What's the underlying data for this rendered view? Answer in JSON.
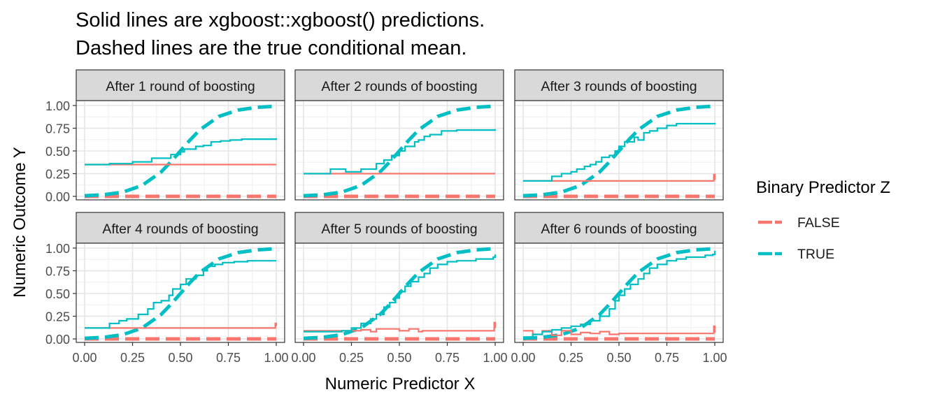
{
  "title_lines": [
    "Solid lines are xgboost::xgboost() predictions.",
    "Dashed lines are the true conditional mean."
  ],
  "chart_data": {
    "type": "line",
    "xlabel": "Numeric Predictor X",
    "ylabel": "Numeric Outcome Y",
    "xlim": [
      0,
      1
    ],
    "ylim": [
      0,
      1
    ],
    "x_ticks": [
      "0.00",
      "0.25",
      "0.50",
      "0.75",
      "1.00"
    ],
    "y_ticks": [
      "0.00",
      "0.25",
      "0.50",
      "0.75",
      "1.00"
    ],
    "grid": true,
    "legend": {
      "title": "Binary Predictor Z",
      "placement": "right",
      "entries": [
        {
          "label": "FALSE",
          "color": "#F8766D"
        },
        {
          "label": "TRUE",
          "color": "#00BFC4"
        }
      ]
    },
    "true_mean": {
      "FALSE": {
        "x": [
          0,
          1
        ],
        "y": [
          0,
          0
        ]
      },
      "TRUE": {
        "x": [
          0,
          0.1,
          0.2,
          0.3,
          0.4,
          0.45,
          0.5,
          0.55,
          0.6,
          0.7,
          0.8,
          0.9,
          1.0
        ],
        "y": [
          0.007,
          0.018,
          0.047,
          0.12,
          0.27,
          0.38,
          0.5,
          0.62,
          0.73,
          0.88,
          0.95,
          0.98,
          0.993
        ]
      }
    },
    "panels": [
      {
        "label": "After 1 round of boosting",
        "series": [
          {
            "name": "FALSE",
            "x": [
              0,
              1
            ],
            "y": [
              0.35,
              0.35
            ]
          },
          {
            "name": "TRUE",
            "x": [
              0,
              0.13,
              0.25,
              0.35,
              0.45,
              0.5,
              0.52,
              0.58,
              0.62,
              0.66,
              0.71,
              0.76,
              0.82,
              1.0
            ],
            "y": [
              0.35,
              0.36,
              0.38,
              0.42,
              0.46,
              0.49,
              0.52,
              0.55,
              0.56,
              0.6,
              0.61,
              0.62,
              0.63,
              0.64
            ]
          }
        ]
      },
      {
        "label": "After 2 rounds of boosting",
        "series": [
          {
            "name": "FALSE",
            "x": [
              0,
              1
            ],
            "y": [
              0.25,
              0.25
            ]
          },
          {
            "name": "TRUE",
            "x": [
              0,
              0.13,
              0.14,
              0.22,
              0.3,
              0.38,
              0.42,
              0.46,
              0.5,
              0.53,
              0.58,
              0.6,
              0.63,
              0.66,
              0.72,
              0.8,
              1.0
            ],
            "y": [
              0.25,
              0.25,
              0.3,
              0.27,
              0.3,
              0.36,
              0.4,
              0.45,
              0.5,
              0.55,
              0.6,
              0.62,
              0.66,
              0.68,
              0.72,
              0.73,
              0.74
            ]
          }
        ]
      },
      {
        "label": "After 3 rounds of boosting",
        "series": [
          {
            "name": "FALSE",
            "x": [
              0,
              0.5,
              0.99,
              0.995,
              1.0
            ],
            "y": [
              0.17,
              0.17,
              0.17,
              0.24,
              0.18
            ]
          },
          {
            "name": "TRUE",
            "x": [
              0,
              0.13,
              0.15,
              0.2,
              0.25,
              0.28,
              0.32,
              0.35,
              0.38,
              0.41,
              0.45,
              0.48,
              0.5,
              0.53,
              0.58,
              0.6,
              0.63,
              0.66,
              0.7,
              0.75,
              0.8,
              1.0
            ],
            "y": [
              0.17,
              0.17,
              0.22,
              0.25,
              0.27,
              0.3,
              0.33,
              0.35,
              0.38,
              0.43,
              0.45,
              0.5,
              0.55,
              0.6,
              0.65,
              0.62,
              0.7,
              0.72,
              0.75,
              0.78,
              0.8,
              0.81
            ]
          }
        ]
      },
      {
        "label": "After 4 rounds of boosting",
        "series": [
          {
            "name": "FALSE",
            "x": [
              0,
              0.99,
              0.995,
              1.0
            ],
            "y": [
              0.12,
              0.12,
              0.17,
              0.14
            ]
          },
          {
            "name": "TRUE",
            "x": [
              0,
              0.1,
              0.13,
              0.18,
              0.22,
              0.28,
              0.33,
              0.36,
              0.4,
              0.44,
              0.46,
              0.5,
              0.53,
              0.58,
              0.62,
              0.64,
              0.68,
              0.72,
              0.78,
              0.85,
              1.0
            ],
            "y": [
              0.12,
              0.12,
              0.17,
              0.2,
              0.22,
              0.27,
              0.33,
              0.4,
              0.42,
              0.48,
              0.55,
              0.6,
              0.66,
              0.7,
              0.75,
              0.8,
              0.82,
              0.84,
              0.85,
              0.86,
              0.86
            ]
          }
        ]
      },
      {
        "label": "After 5 rounds of boosting",
        "series": [
          {
            "name": "FALSE",
            "x": [
              0,
              0.25,
              0.3,
              0.35,
              0.38,
              0.5,
              0.55,
              0.6,
              0.62,
              0.99,
              0.995,
              1.0
            ],
            "y": [
              0.09,
              0.09,
              0.1,
              0.08,
              0.11,
              0.09,
              0.11,
              0.08,
              0.09,
              0.09,
              0.18,
              0.12
            ]
          },
          {
            "name": "TRUE",
            "x": [
              0,
              0.2,
              0.25,
              0.3,
              0.35,
              0.38,
              0.42,
              0.45,
              0.48,
              0.5,
              0.53,
              0.56,
              0.6,
              0.63,
              0.66,
              0.7,
              0.75,
              0.8,
              0.9,
              0.99,
              1.0
            ],
            "y": [
              0.08,
              0.09,
              0.12,
              0.17,
              0.22,
              0.27,
              0.35,
              0.4,
              0.45,
              0.52,
              0.58,
              0.63,
              0.68,
              0.72,
              0.78,
              0.82,
              0.85,
              0.86,
              0.88,
              0.9,
              0.93
            ]
          }
        ]
      },
      {
        "label": "After 6 rounds of boosting",
        "series": [
          {
            "name": "FALSE",
            "x": [
              0,
              0.05,
              0.1,
              0.15,
              0.2,
              0.25,
              0.3,
              0.35,
              0.4,
              0.45,
              0.5,
              0.6,
              0.99,
              0.995,
              1.0
            ],
            "y": [
              0.09,
              0.05,
              0.09,
              0.04,
              0.09,
              0.05,
              0.07,
              0.06,
              0.08,
              0.05,
              0.06,
              0.06,
              0.06,
              0.14,
              0.07
            ]
          },
          {
            "name": "TRUE",
            "x": [
              0,
              0.05,
              0.1,
              0.15,
              0.2,
              0.25,
              0.3,
              0.35,
              0.4,
              0.45,
              0.48,
              0.5,
              0.53,
              0.56,
              0.6,
              0.63,
              0.66,
              0.7,
              0.75,
              0.8,
              0.85,
              0.9,
              0.95,
              0.99,
              1.0
            ],
            "y": [
              0.02,
              0.05,
              0.08,
              0.1,
              0.12,
              0.14,
              0.16,
              0.2,
              0.25,
              0.33,
              0.42,
              0.48,
              0.55,
              0.6,
              0.66,
              0.72,
              0.78,
              0.82,
              0.86,
              0.88,
              0.9,
              0.9,
              0.92,
              0.93,
              0.97
            ]
          }
        ]
      }
    ]
  }
}
